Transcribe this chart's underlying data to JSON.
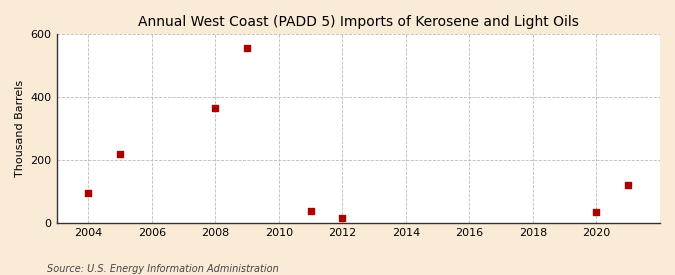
{
  "title": "Annual West Coast (PADD 5) Imports of Kerosene and Light Oils",
  "ylabel": "Thousand Barrels",
  "source": "Source: U.S. Energy Information Administration",
  "background_color": "#faebd7",
  "plot_bg_color": "#ffffff",
  "marker_color": "#aa0000",
  "marker": "s",
  "marker_size": 5,
  "xlim": [
    2003.0,
    2022.0
  ],
  "ylim": [
    0,
    600
  ],
  "yticks": [
    0,
    200,
    400,
    600
  ],
  "xticks": [
    2004,
    2006,
    2008,
    2010,
    2012,
    2014,
    2016,
    2018,
    2020
  ],
  "grid_color": "#bbbbbb",
  "data": {
    "years": [
      2004,
      2005,
      2008,
      2009,
      2011,
      2012,
      2020,
      2021
    ],
    "values": [
      95,
      220,
      365,
      558,
      40,
      15,
      35,
      120
    ]
  }
}
